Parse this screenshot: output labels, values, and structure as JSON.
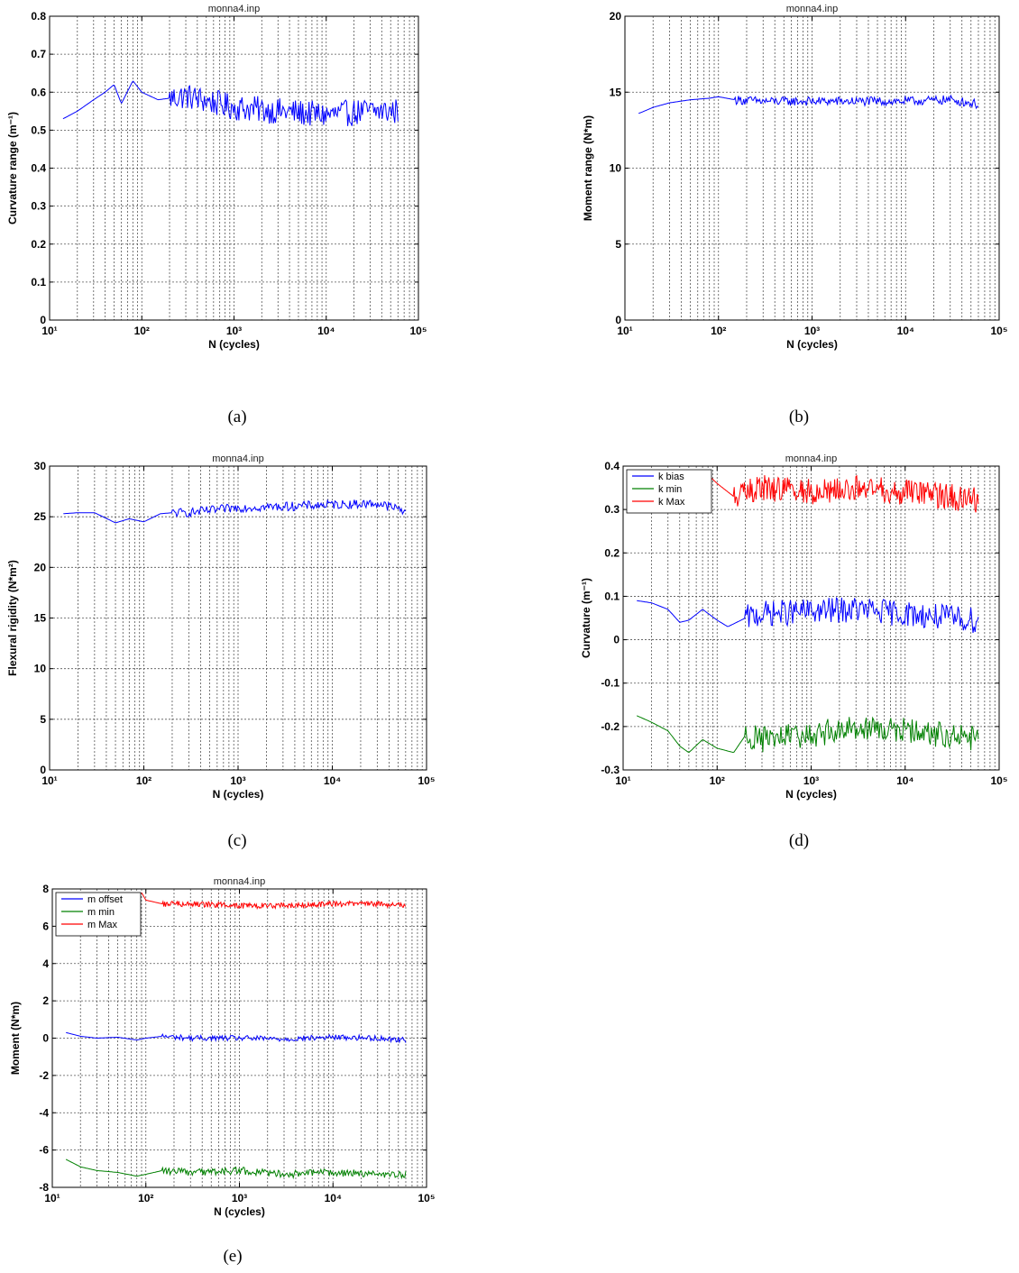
{
  "chart_data": [
    {
      "id": "a",
      "type": "line",
      "panel_label": "(a)",
      "title": "monna4.inp",
      "xlabel": "N (cycles)",
      "ylabel": "Curvature range (m⁻¹)",
      "xscale": "log",
      "xlim": [
        10,
        100000
      ],
      "ylim": [
        0,
        0.8
      ],
      "yticks": [
        0,
        0.1,
        0.2,
        0.3,
        0.4,
        0.5,
        0.6,
        0.7,
        0.8
      ],
      "ytick_labels": [
        "0",
        "0.1",
        "0.2",
        "0.3",
        "0.4",
        "0.5",
        "0.6",
        "0.7",
        "0.8"
      ],
      "xtick_labels": [
        "10¹",
        "10²",
        "10³",
        "10⁴",
        "10⁵"
      ],
      "grid": true,
      "series": [
        {
          "color": "#0000ff",
          "x": [
            14,
            20,
            30,
            40,
            50,
            60,
            80,
            100,
            150,
            300,
            1000,
            3000,
            10000,
            30000,
            60000
          ],
          "y": [
            0.53,
            0.55,
            0.58,
            0.6,
            0.62,
            0.57,
            0.63,
            0.6,
            0.58,
            0.59,
            0.56,
            0.55,
            0.54,
            0.55,
            0.55
          ],
          "noise": 0.035,
          "noise_start": 200
        }
      ]
    },
    {
      "id": "b",
      "type": "line",
      "panel_label": "(b)",
      "title": "monna4.inp",
      "xlabel": "N (cycles)",
      "ylabel": "Moment range (N*m)",
      "xscale": "log",
      "xlim": [
        10,
        100000
      ],
      "ylim": [
        0,
        20
      ],
      "yticks": [
        0,
        5,
        10,
        15,
        20
      ],
      "ytick_labels": [
        "0",
        "5",
        "10",
        "15",
        "20"
      ],
      "xtick_labels": [
        "10¹",
        "10²",
        "10³",
        "10⁴",
        "10⁵"
      ],
      "grid": true,
      "series": [
        {
          "color": "#0000ff",
          "x": [
            14,
            20,
            30,
            50,
            80,
            100,
            150,
            300,
            1000,
            3000,
            10000,
            30000,
            60000
          ],
          "y": [
            13.6,
            14.0,
            14.3,
            14.5,
            14.6,
            14.7,
            14.5,
            14.4,
            14.4,
            14.4,
            14.4,
            14.5,
            14.2
          ],
          "noise": 0.3,
          "noise_start": 150
        }
      ]
    },
    {
      "id": "c",
      "type": "line",
      "panel_label": "(c)",
      "title": "monna4.inp",
      "xlabel": "N (cycles)",
      "ylabel": "Flexural rigidity (N*m²)",
      "xscale": "log",
      "xlim": [
        10,
        100000
      ],
      "ylim": [
        0,
        30
      ],
      "yticks": [
        0,
        5,
        10,
        15,
        20,
        25,
        30
      ],
      "ytick_labels": [
        "0",
        "5",
        "10",
        "15",
        "20",
        "25",
        "30"
      ],
      "xtick_labels": [
        "10¹",
        "10²",
        "10³",
        "10⁴",
        "10⁵"
      ],
      "grid": true,
      "series": [
        {
          "color": "#0000ff",
          "x": [
            14,
            20,
            30,
            50,
            70,
            100,
            150,
            200,
            300,
            1000,
            3000,
            10000,
            30000,
            60000
          ],
          "y": [
            25.3,
            25.4,
            25.4,
            24.4,
            24.8,
            24.5,
            25.3,
            25.4,
            25.4,
            25.9,
            26.0,
            26.2,
            26.3,
            25.6
          ],
          "noise": 0.45,
          "noise_start": 200
        }
      ]
    },
    {
      "id": "d",
      "type": "line",
      "panel_label": "(d)",
      "title": "monna4.inp",
      "xlabel": "N (cycles)",
      "ylabel": "Curvature (m⁻¹)",
      "xscale": "log",
      "xlim": [
        10,
        100000
      ],
      "ylim": [
        -0.3,
        0.4
      ],
      "yticks": [
        -0.3,
        -0.2,
        -0.1,
        0,
        0.1,
        0.2,
        0.3,
        0.4
      ],
      "ytick_labels": [
        "-0.3",
        "-0.2",
        "-0.1",
        "0",
        "0.1",
        "0.2",
        "0.3",
        "0.4"
      ],
      "xtick_labels": [
        "10¹",
        "10²",
        "10³",
        "10⁴",
        "10⁵"
      ],
      "grid": true,
      "legend": "top-left",
      "series": [
        {
          "name": "k bias",
          "color": "#0000ff",
          "x": [
            14,
            20,
            30,
            40,
            50,
            70,
            100,
            130,
            200,
            300,
            1000,
            3000,
            10000,
            30000,
            60000
          ],
          "y": [
            0.09,
            0.085,
            0.07,
            0.04,
            0.045,
            0.07,
            0.045,
            0.03,
            0.05,
            0.06,
            0.065,
            0.07,
            0.06,
            0.05,
            0.045
          ],
          "noise": 0.03,
          "noise_start": 200
        },
        {
          "name": "k min",
          "color": "#008000",
          "x": [
            14,
            20,
            30,
            40,
            50,
            70,
            100,
            150,
            200,
            300,
            1000,
            3000,
            10000,
            30000,
            60000
          ],
          "y": [
            -0.175,
            -0.19,
            -0.21,
            -0.245,
            -0.26,
            -0.23,
            -0.25,
            -0.26,
            -0.22,
            -0.23,
            -0.22,
            -0.2,
            -0.21,
            -0.22,
            -0.23
          ],
          "noise": 0.03,
          "noise_start": 200
        },
        {
          "name": "k Max",
          "color": "#ff0000",
          "x": [
            80,
            100,
            150,
            200,
            300,
            1000,
            3000,
            10000,
            30000,
            60000
          ],
          "y": [
            0.38,
            0.36,
            0.33,
            0.34,
            0.35,
            0.34,
            0.35,
            0.34,
            0.33,
            0.32
          ],
          "noise": 0.03,
          "noise_start": 150
        }
      ]
    },
    {
      "id": "e",
      "type": "line",
      "panel_label": "(e)",
      "title": "monna4.inp",
      "xlabel": "N (cycles)",
      "ylabel": "Moment (N*m)",
      "xscale": "log",
      "xlim": [
        10,
        100000
      ],
      "ylim": [
        -8,
        8
      ],
      "yticks": [
        -8,
        -6,
        -4,
        -2,
        0,
        2,
        4,
        6,
        8
      ],
      "ytick_labels": [
        "-8",
        "-6",
        "-4",
        "-2",
        "0",
        "2",
        "4",
        "6",
        "8"
      ],
      "xtick_labels": [
        "10¹",
        "10²",
        "10³",
        "10⁴",
        "10⁵"
      ],
      "grid": true,
      "legend": "top-left",
      "series": [
        {
          "name": "m offset",
          "color": "#0000ff",
          "x": [
            14,
            20,
            30,
            50,
            80,
            100,
            150,
            300,
            1000,
            3000,
            10000,
            30000,
            60000
          ],
          "y": [
            0.3,
            0.1,
            0.0,
            0.05,
            -0.1,
            0.0,
            0.1,
            0.0,
            0.0,
            -0.05,
            0.05,
            0.0,
            -0.1
          ],
          "noise": 0.15,
          "noise_start": 150
        },
        {
          "name": "m min",
          "color": "#008000",
          "x": [
            14,
            20,
            30,
            50,
            80,
            100,
            150,
            300,
            1000,
            3000,
            10000,
            30000,
            60000
          ],
          "y": [
            -6.5,
            -6.9,
            -7.1,
            -7.2,
            -7.4,
            -7.3,
            -7.1,
            -7.2,
            -7.1,
            -7.3,
            -7.2,
            -7.3,
            -7.3
          ],
          "noise": 0.2,
          "noise_start": 150
        },
        {
          "name": "m Max",
          "color": "#ff0000",
          "x": [
            90,
            100,
            150,
            300,
            1000,
            3000,
            10000,
            30000,
            60000
          ],
          "y": [
            7.8,
            7.4,
            7.2,
            7.2,
            7.1,
            7.1,
            7.2,
            7.2,
            7.1
          ],
          "noise": 0.15,
          "noise_start": 150
        }
      ]
    }
  ]
}
